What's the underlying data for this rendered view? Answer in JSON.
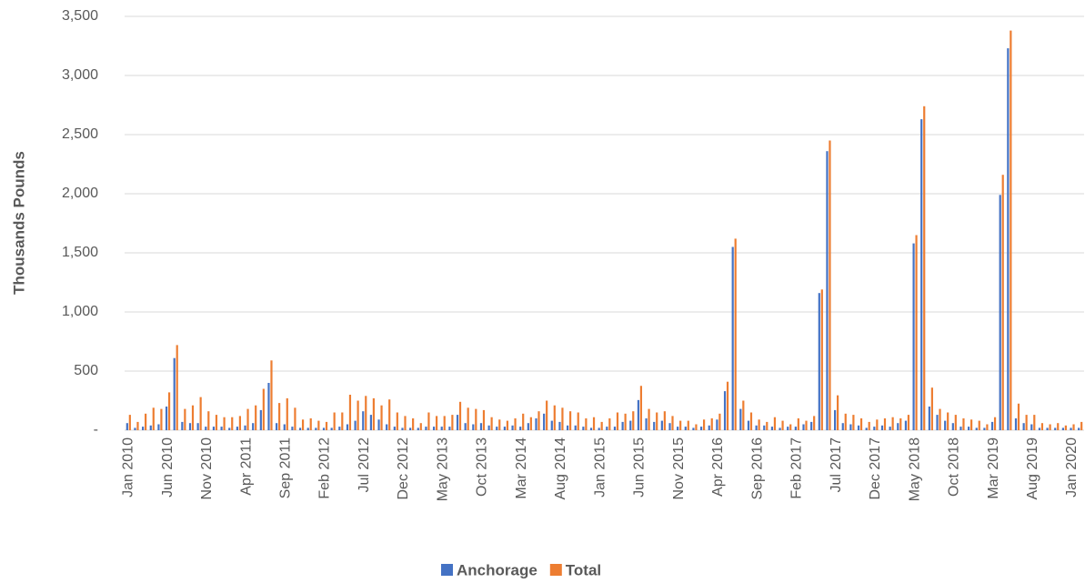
{
  "chart_data": {
    "type": "bar",
    "y_label": "Thousands Pounds",
    "categories": [
      "Jan 2010",
      null,
      null,
      null,
      null,
      "Jun 2010",
      null,
      null,
      null,
      null,
      "Nov 2010",
      null,
      null,
      null,
      null,
      "Apr 2011",
      null,
      null,
      null,
      null,
      "Sep 2011",
      null,
      null,
      null,
      null,
      "Feb 2012",
      null,
      null,
      null,
      null,
      "Jul 2012",
      null,
      null,
      null,
      null,
      "Dec 2012",
      null,
      null,
      null,
      null,
      "May 2013",
      null,
      null,
      null,
      null,
      "Oct 2013",
      null,
      null,
      null,
      null,
      "Mar 2014",
      null,
      null,
      null,
      null,
      "Aug 2014",
      null,
      null,
      null,
      null,
      "Jan 2015",
      null,
      null,
      null,
      null,
      "Jun 2015",
      null,
      null,
      null,
      null,
      "Nov 2015",
      null,
      null,
      null,
      null,
      "Apr 2016",
      null,
      null,
      null,
      null,
      "Sep 2016",
      null,
      null,
      null,
      null,
      "Feb 2017",
      null,
      null,
      null,
      null,
      "Jul 2017",
      null,
      null,
      null,
      null,
      "Dec 2017",
      null,
      null,
      null,
      null,
      "May 2018",
      null,
      null,
      null,
      null,
      "Oct 2018",
      null,
      null,
      null,
      null,
      "Mar 2019",
      null,
      null,
      null,
      null,
      "Aug 2019",
      null,
      null,
      null,
      null,
      "Jan 2020",
      null
    ],
    "series": [
      {
        "name": "Anchorage",
        "color": "#4472c4",
        "values": [
          60,
          20,
          30,
          40,
          50,
          200,
          610,
          70,
          60,
          60,
          30,
          30,
          30,
          20,
          30,
          40,
          60,
          170,
          400,
          60,
          50,
          30,
          20,
          20,
          20,
          20,
          20,
          30,
          50,
          80,
          160,
          130,
          90,
          50,
          30,
          20,
          20,
          20,
          30,
          30,
          30,
          30,
          130,
          60,
          50,
          60,
          40,
          30,
          30,
          40,
          30,
          60,
          100,
          140,
          80,
          70,
          40,
          40,
          30,
          20,
          20,
          30,
          30,
          70,
          80,
          255,
          100,
          70,
          80,
          60,
          30,
          30,
          20,
          30,
          40,
          90,
          330,
          1550,
          180,
          80,
          40,
          40,
          30,
          20,
          30,
          30,
          50,
          70,
          1160,
          2360,
          170,
          60,
          50,
          40,
          20,
          30,
          40,
          30,
          60,
          80,
          1580,
          2630,
          200,
          130,
          80,
          60,
          30,
          30,
          20,
          20,
          70,
          1990,
          3230,
          100,
          60,
          50,
          20,
          20,
          20,
          20,
          20,
          20
        ]
      },
      {
        "name": "Total",
        "color": "#ed7d31",
        "values": [
          130,
          70,
          140,
          190,
          180,
          320,
          720,
          180,
          210,
          280,
          160,
          130,
          110,
          110,
          120,
          180,
          210,
          350,
          590,
          230,
          270,
          190,
          90,
          100,
          80,
          70,
          150,
          150,
          300,
          250,
          290,
          270,
          210,
          260,
          150,
          120,
          100,
          60,
          150,
          120,
          120,
          130,
          240,
          190,
          180,
          170,
          110,
          90,
          80,
          100,
          140,
          110,
          160,
          250,
          210,
          190,
          160,
          150,
          100,
          110,
          70,
          100,
          150,
          140,
          160,
          375,
          180,
          150,
          160,
          120,
          80,
          80,
          50,
          90,
          100,
          140,
          410,
          1620,
          250,
          150,
          90,
          70,
          110,
          80,
          50,
          100,
          80,
          120,
          1190,
          2450,
          295,
          140,
          130,
          100,
          70,
          90,
          100,
          110,
          100,
          130,
          1650,
          2740,
          360,
          180,
          150,
          130,
          100,
          90,
          80,
          50,
          110,
          2160,
          3380,
          225,
          130,
          130,
          60,
          50,
          60,
          40,
          50,
          70
        ]
      }
    ],
    "ylim": [
      0,
      3500
    ],
    "yticks": [
      {
        "value": 0,
        "label": "-"
      },
      500,
      {
        "value": 1000,
        "label": "1,000"
      },
      {
        "value": 1500,
        "label": "1,500"
      },
      {
        "value": 2000,
        "label": "2,000"
      },
      {
        "value": 2500,
        "label": "2,500"
      },
      {
        "value": 3000,
        "label": "3,000"
      },
      {
        "value": 3500,
        "label": "3,500"
      }
    ],
    "grid": true,
    "legend": "bottom"
  }
}
